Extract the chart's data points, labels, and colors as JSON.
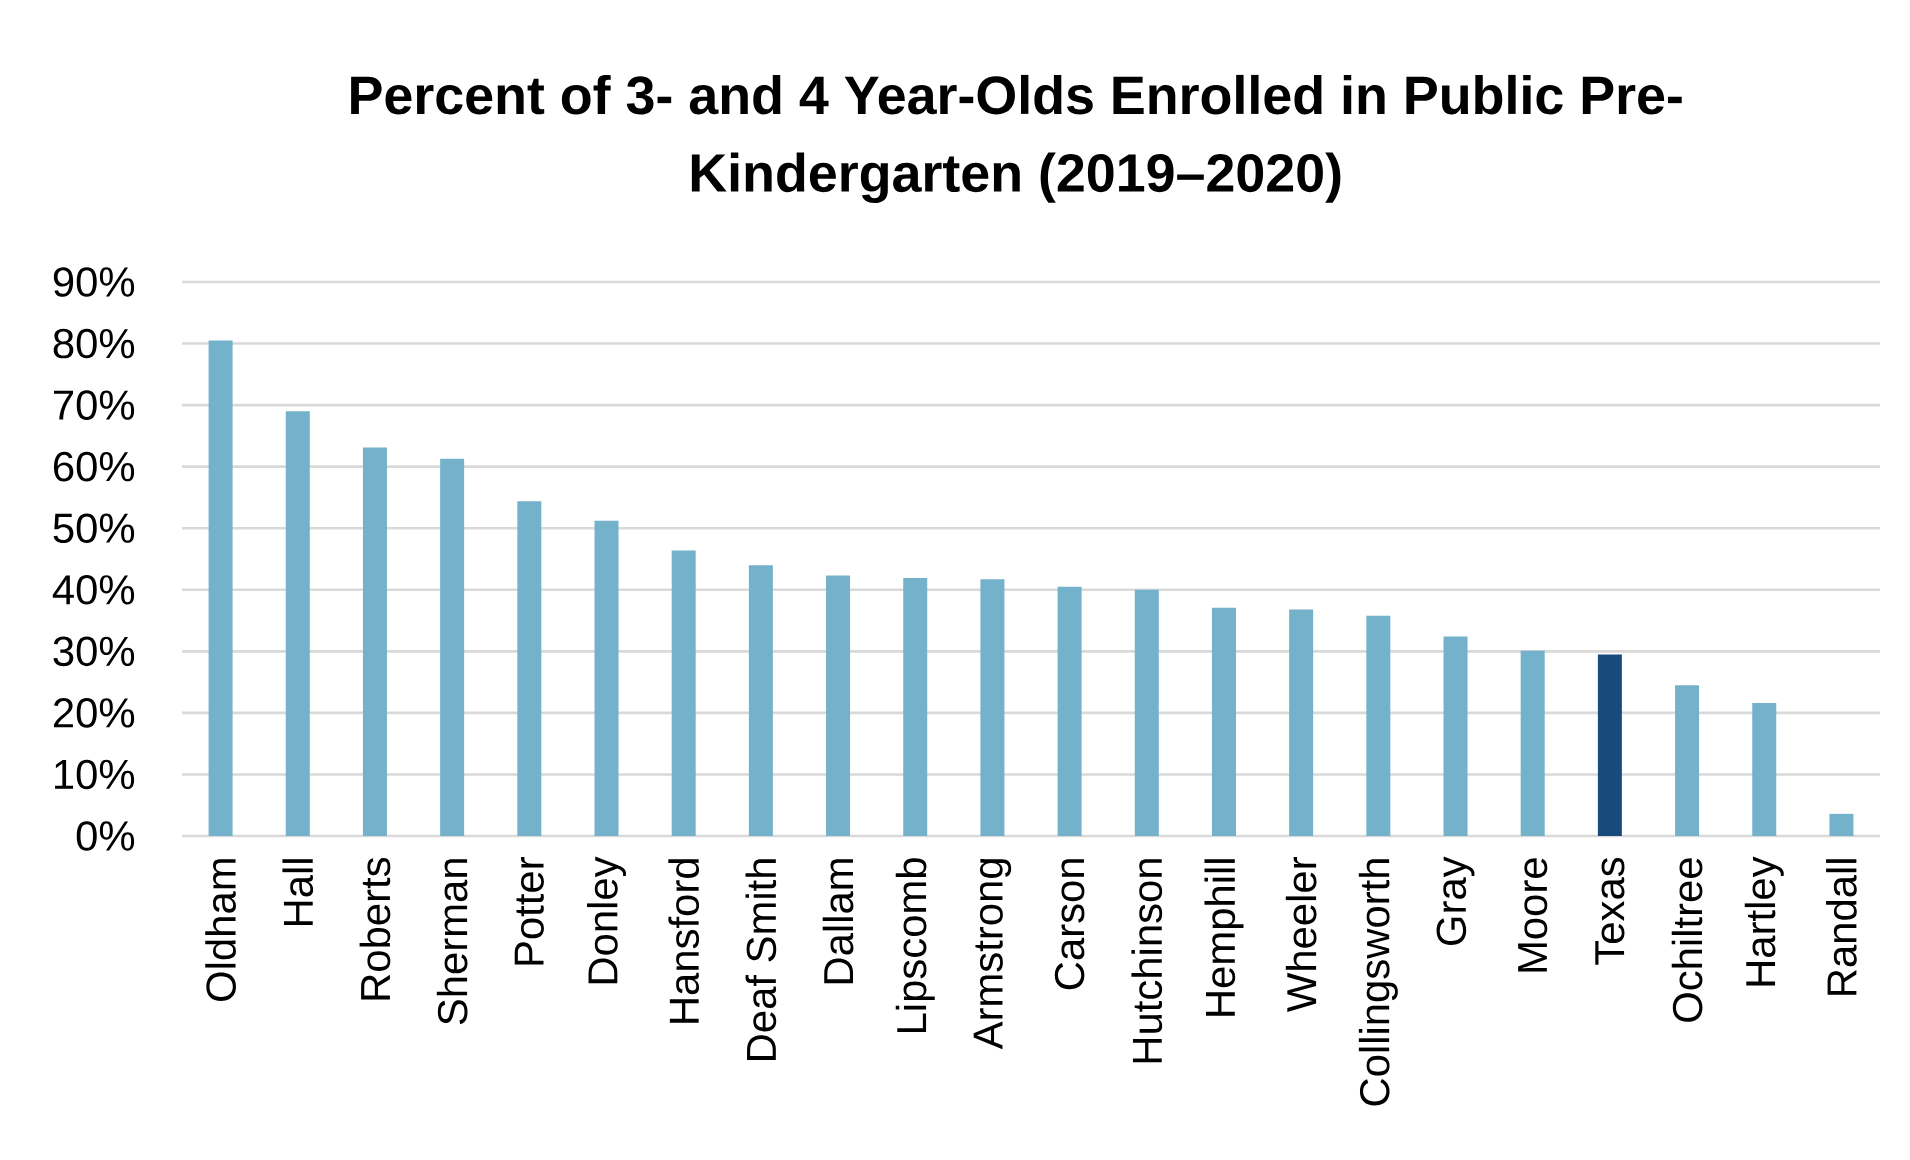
{
  "chart_data": {
    "type": "bar",
    "title": "Percent of 3- and 4 Year-Olds Enrolled in Public Pre-Kindergarten (2019–2020)",
    "categories": [
      "Oldham",
      "Hall",
      "Roberts",
      "Sherman",
      "Potter",
      "Donley",
      "Hansford",
      "Deaf Smith",
      "Dallam",
      "Lipscomb",
      "Armstrong",
      "Carson",
      "Hutchinson",
      "Hemphill",
      "Wheeler",
      "Collingsworth",
      "Gray",
      "Moore",
      "Texas",
      "Ochiltree",
      "Hartley",
      "Randall"
    ],
    "values": [
      80.5,
      69.0,
      63.1,
      61.3,
      54.4,
      51.2,
      46.4,
      44.0,
      42.3,
      41.9,
      41.7,
      40.5,
      40.0,
      37.1,
      36.8,
      35.8,
      32.4,
      30.1,
      29.5,
      24.5,
      21.6,
      3.6
    ],
    "colors": [
      "#74b1ca",
      "#74b1ca",
      "#74b1ca",
      "#74b1ca",
      "#74b1ca",
      "#74b1ca",
      "#74b1ca",
      "#74b1ca",
      "#74b1ca",
      "#74b1ca",
      "#74b1ca",
      "#74b1ca",
      "#74b1ca",
      "#74b1ca",
      "#74b1ca",
      "#74b1ca",
      "#74b1ca",
      "#74b1ca",
      "#184b7c",
      "#74b1ca",
      "#74b1ca",
      "#74b1ca"
    ],
    "ylim": [
      0,
      90
    ],
    "yticks": [
      {
        "value": 0,
        "label": "0%"
      },
      {
        "value": 10,
        "label": "10%"
      },
      {
        "value": 20,
        "label": "20%"
      },
      {
        "value": 30,
        "label": "30%"
      },
      {
        "value": 40,
        "label": "40%"
      },
      {
        "value": 50,
        "label": "50%"
      },
      {
        "value": 60,
        "label": "60%"
      },
      {
        "value": 70,
        "label": "70%"
      },
      {
        "value": 80,
        "label": "80%"
      },
      {
        "value": 90,
        "label": "90%"
      }
    ],
    "grid": "y"
  }
}
